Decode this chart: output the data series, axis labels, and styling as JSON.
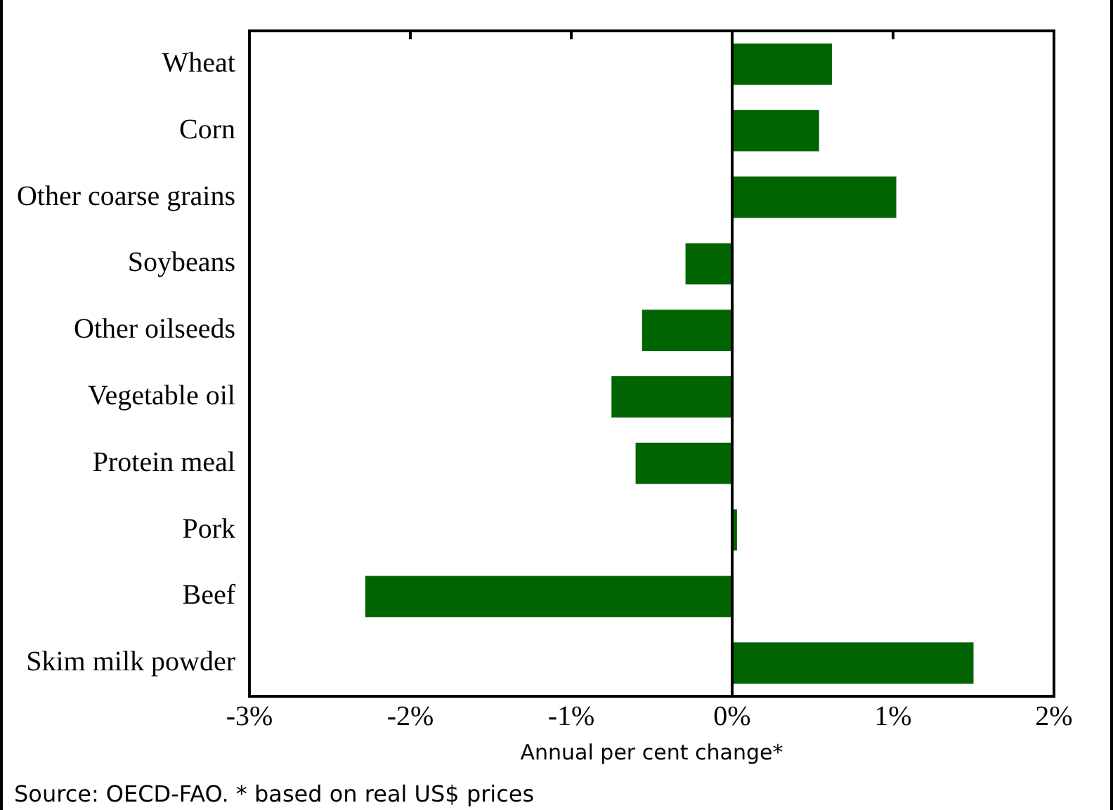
{
  "chart_data": {
    "type": "bar",
    "orientation": "horizontal",
    "categories": [
      "Wheat",
      "Corn",
      "Other coarse grains",
      "Soybeans",
      "Other oilseeds",
      "Vegetable oil",
      "Protein meal",
      "Pork",
      "Beef",
      "Skim milk powder"
    ],
    "values": [
      0.62,
      0.54,
      1.02,
      -0.29,
      -0.56,
      -0.75,
      -0.6,
      0.03,
      -2.28,
      1.5
    ],
    "color": "#006400",
    "xlim": [
      -3,
      2
    ],
    "xticks": [
      {
        "value": -3,
        "label": "-3%"
      },
      {
        "value": -2,
        "label": "-2%"
      },
      {
        "value": -1,
        "label": "-1%"
      },
      {
        "value": 0,
        "label": "0%"
      },
      {
        "value": 1,
        "label": "1%"
      },
      {
        "value": 2,
        "label": "2%"
      }
    ],
    "xlabel": "Annual per cent change*",
    "legend": false,
    "annotations": [
      "Source: OECD-FAO. * based on real US$ prices"
    ]
  }
}
